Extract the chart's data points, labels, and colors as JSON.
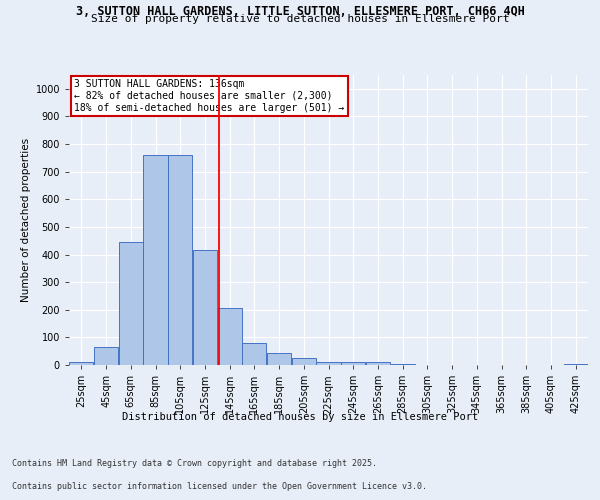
{
  "title_line1": "3, SUTTON HALL GARDENS, LITTLE SUTTON, ELLESMERE PORT, CH66 4QH",
  "title_line2": "Size of property relative to detached houses in Ellesmere Port",
  "xlabel": "Distribution of detached houses by size in Ellesmere Port",
  "ylabel": "Number of detached properties",
  "footer_line1": "Contains HM Land Registry data © Crown copyright and database right 2025.",
  "footer_line2": "Contains public sector information licensed under the Open Government Licence v3.0.",
  "annotation_title": "3 SUTTON HALL GARDENS: 136sqm",
  "annotation_line1": "← 82% of detached houses are smaller (2,300)",
  "annotation_line2": "18% of semi-detached houses are larger (501) →",
  "categories": [
    "25sqm",
    "45sqm",
    "65sqm",
    "85sqm",
    "105sqm",
    "125sqm",
    "145sqm",
    "165sqm",
    "185sqm",
    "205sqm",
    "225sqm",
    "245sqm",
    "265sqm",
    "285sqm",
    "305sqm",
    "325sqm",
    "345sqm",
    "365sqm",
    "385sqm",
    "405sqm",
    "425sqm"
  ],
  "bin_edges": [
    15,
    35,
    55,
    75,
    95,
    115,
    135,
    155,
    175,
    195,
    215,
    235,
    255,
    275,
    295,
    315,
    335,
    355,
    375,
    395,
    415,
    435
  ],
  "values": [
    10,
    65,
    445,
    760,
    760,
    415,
    205,
    78,
    45,
    25,
    12,
    12,
    12,
    5,
    0,
    0,
    0,
    0,
    0,
    0,
    5
  ],
  "bar_color": "#aec6e8",
  "bar_edge_color": "#4472c4",
  "redline_x": 136,
  "ylim": [
    0,
    1050
  ],
  "yticks": [
    0,
    100,
    200,
    300,
    400,
    500,
    600,
    700,
    800,
    900,
    1000
  ],
  "background_color": "#e8eef8",
  "grid_color": "#ffffff",
  "annotation_box_color": "#ffffff",
  "annotation_box_edge": "#cc0000",
  "title_fontsize": 8.5,
  "subtitle_fontsize": 8,
  "axis_label_fontsize": 7.5,
  "tick_fontsize": 7,
  "annotation_fontsize": 7,
  "footer_fontsize": 6
}
